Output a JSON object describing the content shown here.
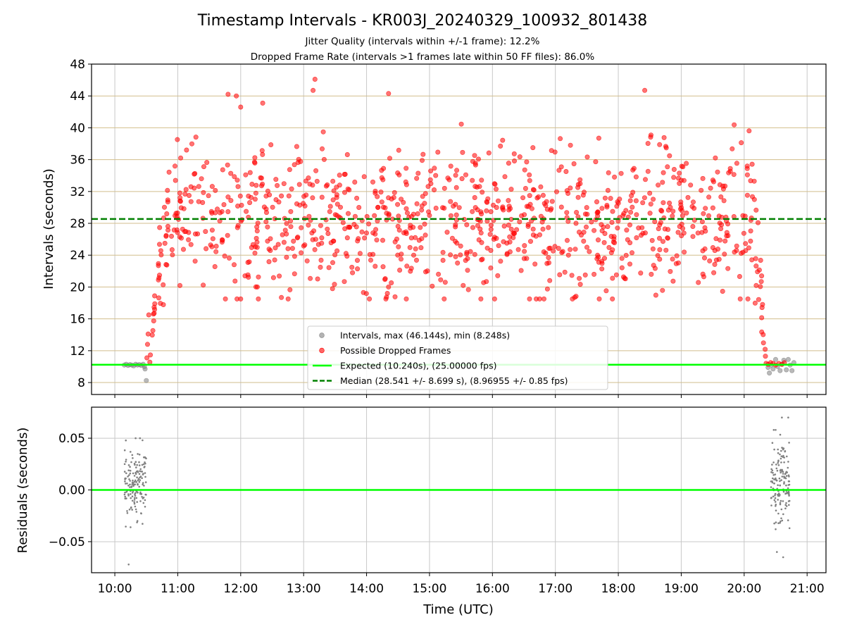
{
  "chart_data": {
    "title": "Timestamp Intervals - KR003J_20240329_100932_801438",
    "subtitle_lines": [
      "Jitter Quality (intervals within +/-1 frame): 12.2%",
      "Dropped Frame Rate (intervals >1 frames late within 50 FF files): 86.0%"
    ],
    "x_axis": {
      "label": "Time (UTC)",
      "unit": "hours UTC",
      "range": [
        9.63,
        21.3
      ],
      "ticks": [
        10,
        11,
        12,
        13,
        14,
        15,
        16,
        17,
        18,
        19,
        20,
        21
      ],
      "tick_labels": [
        "10:00",
        "11:00",
        "12:00",
        "13:00",
        "14:00",
        "15:00",
        "16:00",
        "17:00",
        "18:00",
        "19:00",
        "20:00",
        "21:00"
      ]
    },
    "panels": [
      {
        "type": "scatter",
        "ylabel": "Intervals (seconds)",
        "ylim": [
          6.5,
          48
        ],
        "y_ticks": [
          8,
          12,
          16,
          20,
          24,
          28,
          32,
          36,
          40,
          44,
          48
        ],
        "y_tick_labels": [
          "8",
          "12",
          "16",
          "20",
          "24",
          "28",
          "32",
          "36",
          "40",
          "44",
          "48"
        ],
        "grid": "x and y",
        "horizontal_lines": [
          {
            "name": "Expected (10.240s), (25.00000 fps)",
            "y": 10.24,
            "color": "#00ff00",
            "style": "solid"
          },
          {
            "name": "Median (28.541 +/- 8.699 s), (8.96955 +/- 0.85 fps)",
            "y": 28.541,
            "color": "#008000",
            "style": "dashed"
          }
        ],
        "series": [
          {
            "name": "Intervals, max (46.144s), min (8.248s)",
            "color": "#808080",
            "points": [
              [
                10.15,
                10.2
              ],
              [
                10.18,
                10.3
              ],
              [
                10.21,
                10.15
              ],
              [
                10.24,
                10.25
              ],
              [
                10.27,
                10.2
              ],
              [
                10.3,
                10.1
              ],
              [
                10.33,
                10.3
              ],
              [
                10.36,
                10.2
              ],
              [
                10.39,
                10.25
              ],
              [
                10.42,
                10.15
              ],
              [
                10.45,
                10.3
              ],
              [
                10.47,
                10.0
              ],
              [
                10.48,
                9.7
              ],
              [
                10.5,
                8.25
              ],
              [
                20.38,
                9.9
              ],
              [
                20.4,
                9.2
              ],
              [
                20.43,
                10.2
              ],
              [
                20.46,
                9.7
              ],
              [
                20.5,
                10.9
              ],
              [
                20.53,
                10.0
              ],
              [
                20.57,
                9.5
              ],
              [
                20.6,
                10.3
              ],
              [
                20.63,
                10.8
              ],
              [
                20.67,
                9.6
              ],
              [
                20.7,
                10.9
              ],
              [
                20.73,
                10.2
              ],
              [
                20.76,
                9.5
              ],
              [
                20.79,
                10.5
              ]
            ],
            "note": "grey points under the red dropped-frame points are not readable"
          },
          {
            "name": "Possible Dropped Frames",
            "color": "#ff0000",
            "generator": {
              "seed": 7,
              "count": 1000,
              "t_start": 10.55,
              "t_end": 20.35,
              "ramp_up_end": 10.78,
              "ramp_down_start": 20.17,
              "ramp_floor": 10.3,
              "level": 28.5,
              "spread": 4.8,
              "clip": [
                18.5,
                46.1
              ]
            },
            "points": [
              [
                11.8,
                44.2
              ],
              [
                11.93,
                44.0
              ],
              [
                13.15,
                44.7
              ],
              [
                13.18,
                46.1
              ],
              [
                14.35,
                44.3
              ],
              [
                18.42,
                44.7
              ],
              [
                12.35,
                43.1
              ],
              [
                12.0,
                42.6
              ],
              [
                14.33,
                19.2
              ],
              [
                14.35,
                20.0
              ],
              [
                15.25,
                20.6
              ],
              [
                18.1,
                21.1
              ],
              [
                20.38,
                10.3
              ],
              [
                20.42,
                10.5
              ],
              [
                20.46,
                10.4
              ],
              [
                20.5,
                10.2
              ],
              [
                20.55,
                10.4
              ],
              [
                20.6,
                10.3
              ],
              [
                20.64,
                10.5
              ],
              [
                10.51,
                11.1
              ],
              [
                10.52,
                12.8
              ],
              [
                10.53,
                14.1
              ],
              [
                10.54,
                16.5
              ]
            ]
          }
        ]
      },
      {
        "type": "scatter",
        "ylabel": "Residuals (seconds)",
        "ylim": [
          -0.08,
          0.08
        ],
        "y_ticks": [
          -0.05,
          0.0,
          0.05
        ],
        "y_tick_labels": [
          "−0.05",
          "0.00",
          "0.05"
        ],
        "grid": "x and y",
        "horizontal_lines": [
          {
            "y": 0.0,
            "color": "#00ff00",
            "style": "solid"
          }
        ],
        "series": [
          {
            "name": "residuals",
            "color": "#808080",
            "generator": {
              "seed": 11,
              "groups": [
                {
                  "t_start": 10.15,
                  "t_end": 10.5,
                  "count": 150,
                  "center": 0.005,
                  "spread": 0.015
                },
                {
                  "t_start": 20.42,
                  "t_end": 20.72,
                  "count": 150,
                  "center": 0.008,
                  "spread": 0.018
                }
              ]
            },
            "points": [
              [
                10.22,
                -0.072
              ],
              [
                10.25,
                -0.036
              ],
              [
                10.33,
                0.05
              ],
              [
                10.36,
                -0.03
              ],
              [
                10.4,
                0.05
              ],
              [
                10.44,
                0.048
              ],
              [
                20.47,
                0.058
              ],
              [
                20.5,
                0.058
              ],
              [
                20.5,
                -0.038
              ],
              [
                20.52,
                -0.06
              ],
              [
                20.6,
                0.07
              ],
              [
                20.62,
                -0.065
              ],
              [
                20.7,
                0.07
              ],
              [
                20.72,
                -0.037
              ]
            ]
          }
        ]
      }
    ],
    "legend": {
      "placement": "lower center",
      "entries": [
        {
          "label": "Intervals, max (46.144s), min (8.248s)",
          "marker": "dot",
          "color": "#808080"
        },
        {
          "label": "Possible Dropped Frames",
          "marker": "dot",
          "color": "#ff0000"
        },
        {
          "label": "Expected (10.240s), (25.00000 fps)",
          "marker": "line",
          "color": "#00ff00"
        },
        {
          "label": "Median (28.541 +/- 8.699 s), (8.96955 +/- 0.85 fps)",
          "marker": "dashed-line",
          "color": "#008000"
        }
      ]
    }
  }
}
